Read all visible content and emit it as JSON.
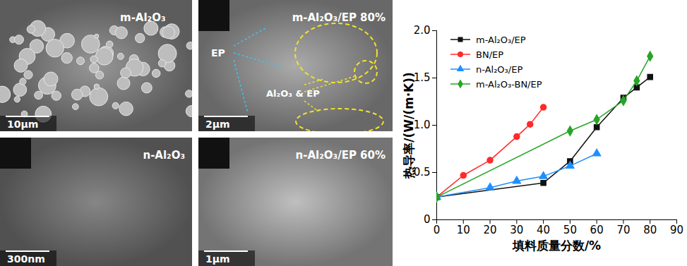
{
  "chart_data": {
    "type": "line",
    "x_label": "填料质量分数/%",
    "y_label": "热导率/(W/(m·K))",
    "xlim": [
      0,
      90
    ],
    "xticks": [
      0,
      10,
      20,
      30,
      40,
      50,
      60,
      70,
      80,
      90
    ],
    "ylim": [
      0,
      2.0
    ],
    "yticks": [
      0,
      0.5,
      {
        "value": 1.0,
        "label": "1.0"
      },
      1.5,
      {
        "value": 2.0,
        "label": "2.0"
      }
    ],
    "grid": false,
    "legend": "upper left",
    "series": [
      {
        "name": "m-Al₂O₃/EP",
        "color": "#111111",
        "marker": "square",
        "x": [
          0,
          40,
          50,
          60,
          70,
          75,
          80
        ],
        "values": [
          0.24,
          0.39,
          0.62,
          0.98,
          1.29,
          1.4,
          1.51
        ]
      },
      {
        "name": "BN/EP",
        "color": "#ff2a2a",
        "marker": "circle",
        "x": [
          0,
          10,
          20,
          30,
          35,
          40
        ],
        "values": [
          0.24,
          0.47,
          0.63,
          0.88,
          1.01,
          1.19
        ]
      },
      {
        "name": "n-Al₂O₃/EP",
        "color": "#1e8fff",
        "marker": "triangle",
        "x": [
          0,
          20,
          30,
          40,
          50,
          60
        ],
        "values": [
          0.24,
          0.34,
          0.41,
          0.46,
          0.57,
          0.7
        ]
      },
      {
        "name": "m-Al₂O₃-BN/EP",
        "color": "#27a527",
        "marker": "diamond",
        "x": [
          0,
          50,
          60,
          70,
          75,
          80
        ],
        "values": [
          0.24,
          0.94,
          1.06,
          1.26,
          1.47,
          1.73
        ]
      }
    ]
  },
  "panels": [
    {
      "label": "m-Al₂O₃",
      "scale_bar": "10μm",
      "annotations": []
    },
    {
      "label": "m-Al₂O₃/EP 80%",
      "scale_bar": "2μm",
      "annotations": [
        "EP",
        "Al₂O₃ & EP"
      ]
    },
    {
      "label": "n-Al₂O₃",
      "scale_bar": "300nm",
      "annotations": []
    },
    {
      "label": "n-Al₂O₃/EP 60%",
      "scale_bar": "1μm",
      "annotations": []
    }
  ]
}
